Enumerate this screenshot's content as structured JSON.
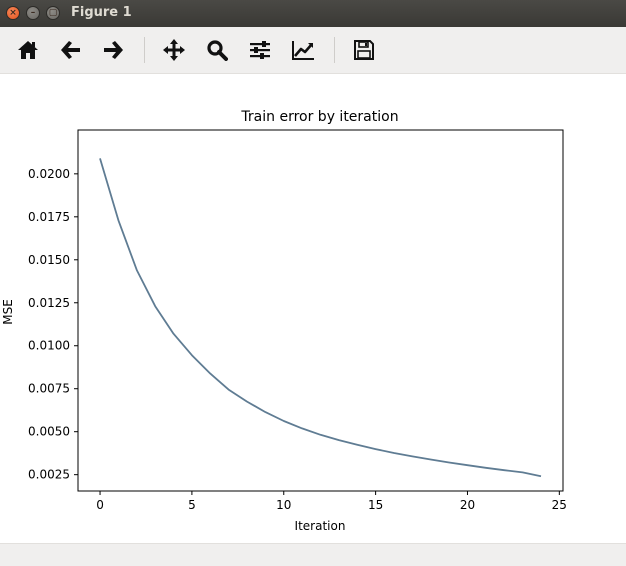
{
  "window": {
    "title": "Figure 1",
    "close_glyph": "×",
    "minimize_glyph": "–",
    "maximize_glyph": "▢"
  },
  "toolbar": {
    "icons": [
      "home-icon",
      "back-arrow-icon",
      "forward-arrow-icon",
      "pan-icon",
      "zoom-icon",
      "configure-subplots-icon",
      "edit-axes-icon",
      "save-icon"
    ]
  },
  "colors": {
    "line": "#5f7c93",
    "titlebar": "#3c3b37",
    "close_button": "#e95420"
  },
  "chart_data": {
    "type": "line",
    "title": "Train error by iteration",
    "xlabel": "Iteration",
    "ylabel": "MSE",
    "xlim": [
      -1.2,
      25.2
    ],
    "ylim": [
      0.00155,
      0.02255
    ],
    "xticks": [
      0,
      5,
      10,
      15,
      20,
      25
    ],
    "xtick_labels": [
      "0",
      "5",
      "10",
      "15",
      "20",
      "25"
    ],
    "yticks": [
      0.0025,
      0.005,
      0.0075,
      0.01,
      0.0125,
      0.015,
      0.0175,
      0.02
    ],
    "ytick_labels": [
      "0.0025",
      "0.0050",
      "0.0075",
      "0.0100",
      "0.0125",
      "0.0150",
      "0.0175",
      "0.0200"
    ],
    "grid": false,
    "series": [
      {
        "x": [
          0,
          1,
          2,
          3,
          4,
          5,
          6,
          7,
          8,
          9,
          10,
          11,
          12,
          13,
          14,
          15,
          16,
          17,
          18,
          19,
          20,
          21,
          22,
          23,
          24
        ],
        "y": [
          0.0209,
          0.0173,
          0.0144,
          0.0123,
          0.0107,
          0.00945,
          0.00838,
          0.00745,
          0.00675,
          0.00614,
          0.00562,
          0.00519,
          0.00482,
          0.00451,
          0.00424,
          0.00399,
          0.00376,
          0.00356,
          0.00338,
          0.00321,
          0.00305,
          0.0029,
          0.00276,
          0.00263,
          0.00241
        ]
      }
    ]
  }
}
